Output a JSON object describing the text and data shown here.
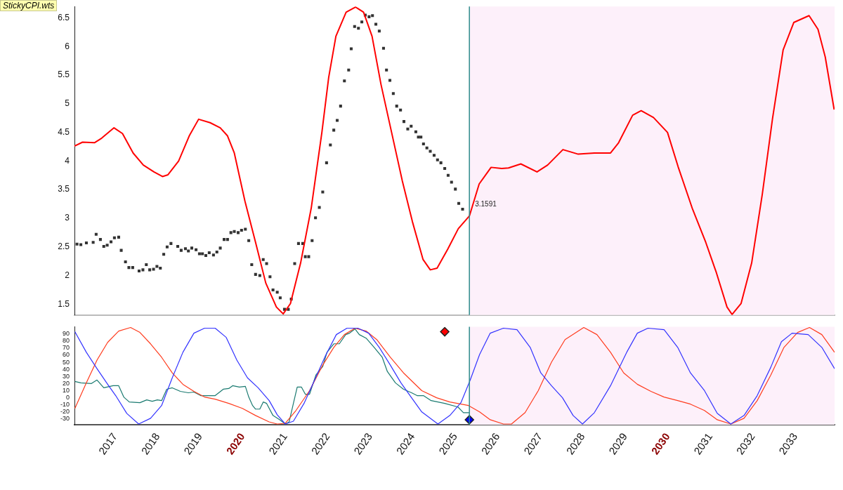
{
  "chart_data": [
    {
      "type": "line",
      "title": "StickyCPI.wts",
      "xlim": [
        2016.04,
        2033.92
      ],
      "ylim": [
        1.31,
        6.7
      ],
      "yticks": [
        1.5,
        2,
        2.5,
        3,
        3.5,
        4,
        4.5,
        5,
        5.5,
        6,
        6.5
      ],
      "tick_labels": "y",
      "grid": false,
      "legend": false,
      "bands": [
        {
          "axis": "x",
          "from": 2025.33,
          "to": 2033.92,
          "color": "#fdf0fa"
        }
      ],
      "ref_lines": [
        {
          "axis": "x",
          "value": 2025.33,
          "color": "#2e8b8b"
        }
      ],
      "annotations": [
        {
          "text": "3.1591",
          "x": 2025.33,
          "y": 3.1591
        }
      ],
      "series": [
        {
          "color": "#ff0000",
          "marker": "none",
          "x": [
            2016.04,
            2016.23,
            2016.51,
            2016.68,
            2016.97,
            2017.17,
            2017.42,
            2017.66,
            2017.91,
            2018.11,
            2018.24,
            2018.49,
            2018.74,
            2018.96,
            2019.23,
            2019.47,
            2019.64,
            2019.8,
            2020.05,
            2020.3,
            2020.54,
            2020.79,
            2020.95,
            2021.12,
            2021.36,
            2021.61,
            2021.86,
            2022.02,
            2022.19,
            2022.43,
            2022.65,
            2022.84,
            2023.04,
            2023.25,
            2023.5,
            2023.75,
            2023.99,
            2024.24,
            2024.41,
            2024.57,
            2024.82,
            2025.07,
            2025.33,
            2025.56,
            2025.84,
            2026.09,
            2026.25,
            2026.54,
            2026.92,
            2027.17,
            2027.53,
            2027.89,
            2028.27,
            2028.65,
            2028.84,
            2029.17,
            2029.37,
            2029.66,
            2029.99,
            2030.24,
            2030.57,
            2030.89,
            2031.14,
            2031.39,
            2031.51,
            2031.72,
            2031.97,
            2032.22,
            2032.46,
            2032.71,
            2032.96,
            2033.32,
            2033.53,
            2033.7,
            2033.91
          ],
          "values": [
            4.26,
            4.33,
            4.32,
            4.4,
            4.58,
            4.48,
            4.14,
            3.93,
            3.81,
            3.73,
            3.76,
            4.0,
            4.44,
            4.73,
            4.67,
            4.58,
            4.44,
            4.14,
            3.3,
            2.58,
            1.87,
            1.45,
            1.33,
            1.51,
            2.22,
            3.18,
            4.5,
            5.46,
            6.18,
            6.6,
            6.69,
            6.6,
            6.18,
            5.34,
            4.5,
            3.66,
            2.94,
            2.28,
            2.1,
            2.13,
            2.46,
            2.82,
            3.04,
            3.6,
            3.89,
            3.87,
            3.88,
            3.95,
            3.81,
            3.93,
            4.2,
            4.12,
            4.14,
            4.14,
            4.32,
            4.8,
            4.88,
            4.76,
            4.5,
            3.9,
            3.18,
            2.58,
            2.05,
            1.45,
            1.32,
            1.51,
            2.22,
            3.42,
            4.74,
            5.94,
            6.42,
            6.54,
            6.3,
            5.82,
            4.9
          ]
        },
        {
          "type": "scatter",
          "color": "#333333",
          "marker": "square",
          "x": [
            2016.1,
            2016.19,
            2016.32,
            2016.48,
            2016.55,
            2016.65,
            2016.73,
            2016.81,
            2016.9,
            2016.98,
            2017.08,
            2017.14,
            2017.24,
            2017.32,
            2017.41,
            2017.56,
            2017.65,
            2017.73,
            2017.81,
            2017.9,
            2017.98,
            2018.06,
            2018.14,
            2018.22,
            2018.31,
            2018.47,
            2018.55,
            2018.65,
            2018.72,
            2018.8,
            2018.9,
            2018.98,
            2019.05,
            2019.13,
            2019.21,
            2019.31,
            2019.39,
            2019.47,
            2019.56,
            2019.64,
            2019.72,
            2019.8,
            2019.89,
            2019.97,
            2020.06,
            2020.14,
            2020.21,
            2020.3,
            2020.4,
            2020.48,
            2020.56,
            2020.64,
            2020.71,
            2020.81,
            2020.88,
            2020.98,
            2021.07,
            2021.14,
            2021.22,
            2021.31,
            2021.41,
            2021.47,
            2021.55,
            2021.63,
            2021.71,
            2021.8,
            2021.88,
            2021.97,
            2022.06,
            2022.14,
            2022.22,
            2022.3,
            2022.39,
            2022.49,
            2022.55,
            2022.63,
            2022.72,
            2022.8,
            2022.88,
            2022.97,
            2023.05,
            2023.13,
            2023.21,
            2023.31,
            2023.38,
            2023.46,
            2023.54,
            2023.62,
            2023.71,
            2023.79,
            2023.88,
            2023.96,
            2024.07,
            2024.13,
            2024.19,
            2024.25,
            2024.33,
            2024.41,
            2024.5,
            2024.58,
            2024.66,
            2024.75,
            2024.83,
            2024.91,
            2025.0,
            2025.08,
            2025.17
          ],
          "values": [
            2.55,
            2.54,
            2.57,
            2.58,
            2.72,
            2.63,
            2.51,
            2.53,
            2.59,
            2.66,
            2.67,
            2.44,
            2.24,
            2.14,
            2.14,
            2.08,
            2.1,
            2.19,
            2.1,
            2.11,
            2.16,
            2.13,
            2.37,
            2.5,
            2.56,
            2.51,
            2.44,
            2.47,
            2.43,
            2.48,
            2.45,
            2.38,
            2.38,
            2.35,
            2.4,
            2.36,
            2.41,
            2.48,
            2.63,
            2.63,
            2.75,
            2.77,
            2.75,
            2.79,
            2.81,
            2.61,
            2.19,
            2.02,
            2.0,
            2.28,
            2.21,
            1.98,
            1.75,
            1.71,
            1.61,
            1.41,
            1.41,
            1.59,
            2.21,
            2.56,
            2.56,
            2.33,
            2.33,
            2.61,
            3.01,
            3.19,
            3.46,
            3.97,
            4.28,
            4.54,
            4.71,
            4.96,
            5.4,
            5.59,
            5.96,
            6.35,
            6.32,
            6.43,
            6.55,
            6.52,
            6.54,
            6.39,
            6.27,
            5.97,
            5.59,
            5.41,
            5.18,
            4.96,
            4.89,
            4.69,
            4.56,
            4.61,
            4.51,
            4.42,
            4.42,
            4.3,
            4.23,
            4.17,
            4.1,
            4.02,
            3.97,
            3.87,
            3.75,
            3.63,
            3.51,
            3.26,
            3.16
          ]
        }
      ]
    },
    {
      "type": "line",
      "xlim": [
        2016.04,
        2033.92
      ],
      "xticks": [
        2017,
        2018,
        2019,
        2020,
        2021,
        2022,
        2023,
        2024,
        2025,
        2026,
        2027,
        2028,
        2029,
        2030,
        2031,
        2032,
        2033
      ],
      "ylim": [
        -38,
        100
      ],
      "yticks": [
        -30,
        -20,
        -10,
        0,
        10,
        20,
        30,
        40,
        50,
        60,
        70,
        80,
        90
      ],
      "grid": false,
      "legend": false,
      "bands": [
        {
          "axis": "x",
          "from": 2025.33,
          "to": 2033.92,
          "color": "#fdf0fa"
        }
      ],
      "ref_lines": [
        {
          "axis": "x",
          "value": 2025.33,
          "color": "#2e8b8b"
        }
      ],
      "series": [
        {
          "color": "#3333ff",
          "marker": "none",
          "x": [
            2016.05,
            2016.32,
            2016.57,
            2016.82,
            2017.01,
            2017.27,
            2017.55,
            2017.83,
            2018.09,
            2018.34,
            2018.59,
            2018.85,
            2019.1,
            2019.35,
            2019.61,
            2019.86,
            2020.11,
            2020.36,
            2020.62,
            2020.81,
            2021.0,
            2021.19,
            2021.44,
            2021.69,
            2021.95,
            2022.2,
            2022.45,
            2022.71,
            2022.96,
            2023.21,
            2023.47,
            2023.72,
            2023.97,
            2024.21,
            2024.59,
            2024.87,
            2025.13,
            2025.35,
            2025.57,
            2025.82,
            2026.13,
            2026.45,
            2026.76,
            2027.01,
            2027.26,
            2027.52,
            2027.77,
            2027.99,
            2028.27,
            2028.65,
            2029.03,
            2029.28,
            2029.53,
            2029.91,
            2030.23,
            2030.53,
            2030.86,
            2031.16,
            2031.48,
            2031.79,
            2032.1,
            2032.42,
            2032.67,
            2032.92,
            2033.3,
            2033.62,
            2033.92
          ],
          "values": [
            93,
            64,
            41,
            19,
            3,
            -22,
            -37,
            -29,
            -11,
            28,
            64,
            91,
            98,
            98,
            85,
            53,
            28,
            14,
            -4,
            -24,
            -37,
            -33,
            -8,
            25,
            60,
            89,
            98,
            98,
            91,
            71,
            46,
            21,
            0,
            -20,
            -37,
            -25,
            -7,
            25,
            61,
            91,
            98,
            96,
            71,
            35,
            17,
            0,
            -25,
            -37,
            -21,
            17,
            64,
            91,
            98,
            96,
            71,
            35,
            10,
            -22,
            -37,
            -25,
            3,
            43,
            79,
            91,
            89,
            71,
            41
          ]
        },
        {
          "color": "#ff3c1e",
          "marker": "none",
          "x": [
            2016.05,
            2016.32,
            2016.57,
            2016.82,
            2017.08,
            2017.36,
            2017.58,
            2017.83,
            2018.09,
            2018.34,
            2018.59,
            2018.85,
            2019.1,
            2019.35,
            2019.67,
            2019.99,
            2020.3,
            2020.62,
            2020.81,
            2021.0,
            2021.25,
            2021.57,
            2021.88,
            2022.14,
            2022.39,
            2022.64,
            2022.9,
            2023.15,
            2023.47,
            2023.78,
            2024.21,
            2024.56,
            2024.87,
            2025.31,
            2025.57,
            2025.82,
            2026.13,
            2026.32,
            2026.64,
            2026.95,
            2027.26,
            2027.58,
            2028.02,
            2028.33,
            2028.65,
            2028.96,
            2029.28,
            2029.6,
            2029.91,
            2030.23,
            2030.53,
            2030.86,
            2031.16,
            2031.48,
            2031.79,
            2032.1,
            2032.42,
            2032.73,
            2033.05,
            2033.33,
            2033.62,
            2033.92
          ],
          "values": [
            -15,
            21,
            53,
            78,
            94,
            99,
            92,
            76,
            57,
            35,
            19,
            9,
            1,
            -2,
            -8,
            -15,
            -25,
            -34,
            -37,
            -36,
            -18,
            10,
            46,
            71,
            89,
            98,
            94,
            82,
            57,
            35,
            10,
            0,
            -6,
            -11,
            -20,
            -31,
            -37,
            -37,
            -21,
            10,
            50,
            82,
            99,
            89,
            64,
            35,
            19,
            9,
            1,
            -4,
            -9,
            -18,
            -31,
            -37,
            -29,
            -4,
            32,
            71,
            92,
            99,
            89,
            64
          ]
        },
        {
          "color": "#1a7a70",
          "marker": "none",
          "x": [
            2016.05,
            2016.19,
            2016.44,
            2016.57,
            2016.73,
            2016.95,
            2017.08,
            2017.2,
            2017.33,
            2017.58,
            2017.74,
            2017.87,
            2017.99,
            2018.09,
            2018.21,
            2018.34,
            2018.53,
            2018.72,
            2018.85,
            2019.01,
            2019.35,
            2019.54,
            2019.67,
            2019.76,
            2019.92,
            2020.06,
            2020.14,
            2020.23,
            2020.3,
            2020.4,
            2020.48,
            2020.56,
            2020.71,
            2020.87,
            2021.0,
            2021.09,
            2021.19,
            2021.28,
            2021.38,
            2021.47,
            2021.57,
            2021.72,
            2021.88,
            2021.98,
            2022.14,
            2022.27,
            2022.42,
            2022.51,
            2022.64,
            2022.74,
            2022.9,
            2023.09,
            2023.28,
            2023.4,
            2023.59,
            2023.78,
            2023.97,
            2024.1,
            2024.25,
            2024.43,
            2024.75,
            2025.06,
            2025.19,
            2025.33
          ],
          "values": [
            23,
            21,
            20,
            25,
            14,
            17,
            17,
            1,
            -6,
            -7,
            -3,
            -5,
            -3,
            -4,
            12,
            14,
            9,
            7,
            8,
            3,
            3,
            12,
            13,
            17,
            15,
            16,
            1,
            -11,
            -16,
            -16,
            -6,
            -8,
            -25,
            -31,
            -37,
            -34,
            -8,
            15,
            15,
            5,
            5,
            32,
            44,
            64,
            76,
            76,
            89,
            91,
            97,
            89,
            84,
            71,
            57,
            37,
            21,
            12,
            7,
            3,
            3,
            -4,
            -8,
            -13,
            -21,
            -21
          ]
        },
        {
          "type": "scatter",
          "color": "#ff0000",
          "marker": "diamond",
          "x": [
            2024.75
          ],
          "values": [
            93
          ]
        },
        {
          "type": "scatter",
          "color": "#0000ff",
          "marker": "diamond",
          "x": [
            2025.33
          ],
          "values": [
            -31
          ]
        }
      ]
    }
  ]
}
